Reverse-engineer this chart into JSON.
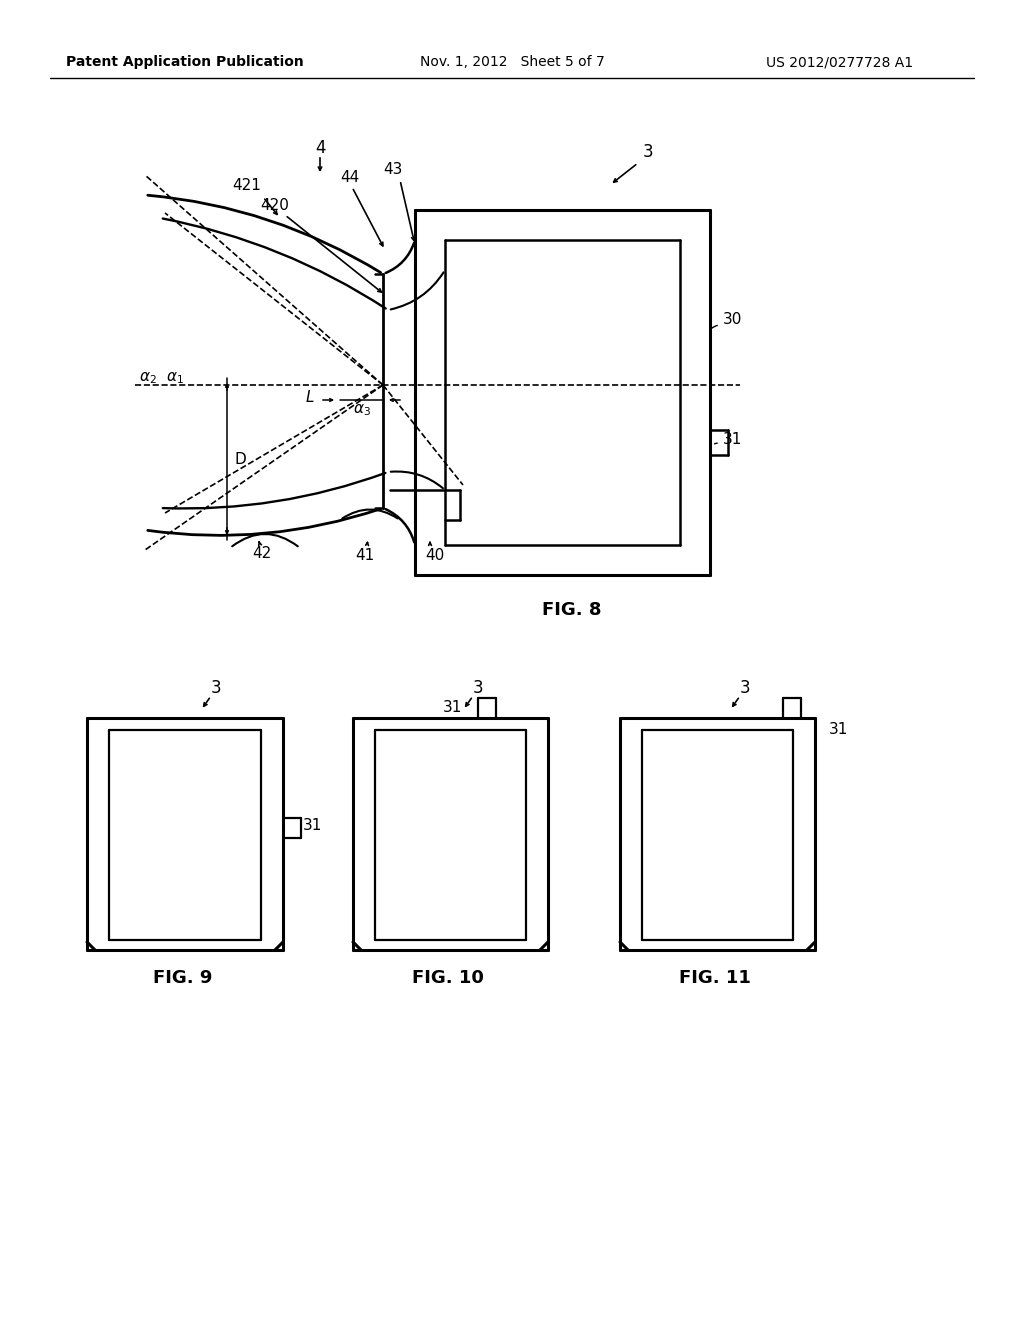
{
  "background_color": "#ffffff",
  "header_left": "Patent Application Publication",
  "header_mid": "Nov. 1, 2012   Sheet 5 of 7",
  "header_right": "US 2012/0277728 A1"
}
